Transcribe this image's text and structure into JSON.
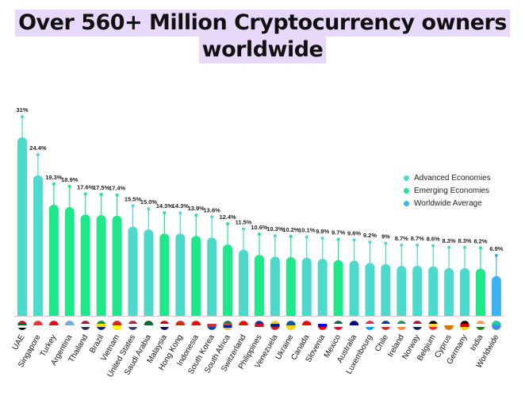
{
  "title": {
    "line1": "Over 560+ Million Cryptocurrency owners",
    "line2": "worldwide"
  },
  "colors": {
    "advanced": "#4dd9cc",
    "emerging": "#1de88a",
    "worldwide": "#3eb2f2"
  },
  "chart_data": {
    "type": "bar",
    "title": "Over 560+ Million Cryptocurrency owners worldwide",
    "xlabel": "",
    "ylabel": "",
    "ylim": [
      0,
      31
    ],
    "grid": false,
    "legend_position": "right",
    "legend": [
      {
        "name": "Advanced Economies",
        "group": "advanced"
      },
      {
        "name": "Emerging Economies",
        "group": "emerging"
      },
      {
        "name": "Worldwide Average",
        "group": "worldwide"
      }
    ],
    "categories": [
      "UAE",
      "Singapore",
      "Turkey",
      "Argentina",
      "Thailand",
      "Brazil",
      "Vietnam",
      "United States",
      "Saudi Arabia",
      "Malaysia",
      "Hong Kong",
      "Indonesia",
      "South Korea",
      "South Africa",
      "Switzerland",
      "Philippines",
      "Venezuela",
      "Ukraine",
      "Canada",
      "Slovenia",
      "Mexico",
      "Australia",
      "Luxembourg",
      "Chile",
      "Ireland",
      "Norway",
      "Belgium",
      "Cyprus",
      "Germany",
      "India",
      "Worldwide"
    ],
    "values": [
      31,
      24.4,
      19.3,
      18.9,
      17.6,
      17.5,
      17.4,
      15.5,
      15.0,
      14.3,
      14.3,
      13.9,
      13.6,
      12.4,
      11.5,
      10.6,
      10.3,
      10.2,
      10.1,
      9.9,
      9.7,
      9.6,
      9.2,
      9,
      8.7,
      8.7,
      8.6,
      8.3,
      8.3,
      8.2,
      6.9
    ],
    "labels": [
      "31%",
      "24.4%",
      "19.3%",
      "18.9%",
      "17.6%",
      "17.5%",
      "17.4%",
      "15.5%",
      "15.0%",
      "14.3%",
      "14.3%",
      "13.9%",
      "13.6%",
      "12.4%",
      "11.5%",
      "10.6%",
      "10.3%",
      "10.2%",
      "10.1%",
      "9.9%",
      "9.7%",
      "9.6%",
      "9.2%",
      "9%",
      "8.7%",
      "8.7%",
      "8.6%",
      "8.3%",
      "8.3%",
      "8.2%",
      "6.9%"
    ],
    "groups": [
      "advanced",
      "advanced",
      "emerging",
      "emerging",
      "emerging",
      "emerging",
      "emerging",
      "advanced",
      "advanced",
      "emerging",
      "advanced",
      "emerging",
      "advanced",
      "emerging",
      "advanced",
      "emerging",
      "advanced",
      "emerging",
      "advanced",
      "advanced",
      "emerging",
      "advanced",
      "advanced",
      "advanced",
      "advanced",
      "advanced",
      "advanced",
      "advanced",
      "advanced",
      "emerging",
      "worldwide"
    ],
    "flags": [
      {
        "icon": "uae-flag-icon",
        "colors": [
          "#ce1126",
          "#00732f",
          "#ffffff",
          "#000000"
        ]
      },
      {
        "icon": "singapore-flag-icon",
        "colors": [
          "#ef3340",
          "#ffffff"
        ]
      },
      {
        "icon": "turkey-flag-icon",
        "colors": [
          "#e30a17",
          "#ffffff"
        ]
      },
      {
        "icon": "argentina-flag-icon",
        "colors": [
          "#74acdf",
          "#ffffff"
        ]
      },
      {
        "icon": "thailand-flag-icon",
        "colors": [
          "#a51931",
          "#f4f5f8",
          "#2d2a4a"
        ]
      },
      {
        "icon": "brazil-flag-icon",
        "colors": [
          "#009c3b",
          "#ffdf00",
          "#002776"
        ]
      },
      {
        "icon": "vietnam-flag-icon",
        "colors": [
          "#da251d",
          "#ffff00"
        ]
      },
      {
        "icon": "us-flag-icon",
        "colors": [
          "#b22234",
          "#ffffff",
          "#3c3b6e"
        ]
      },
      {
        "icon": "saudi-arabia-flag-icon",
        "colors": [
          "#006c35",
          "#ffffff"
        ]
      },
      {
        "icon": "malaysia-flag-icon",
        "colors": [
          "#cc0001",
          "#ffffff",
          "#010066"
        ]
      },
      {
        "icon": "hong-kong-flag-icon",
        "colors": [
          "#de2910",
          "#ffffff"
        ]
      },
      {
        "icon": "indonesia-flag-icon",
        "colors": [
          "#ff0000",
          "#ffffff"
        ]
      },
      {
        "icon": "south-korea-flag-icon",
        "colors": [
          "#ffffff",
          "#cd2e3a",
          "#0047a0"
        ]
      },
      {
        "icon": "south-africa-flag-icon",
        "colors": [
          "#007a4d",
          "#de3831",
          "#002395",
          "#ffb612"
        ]
      },
      {
        "icon": "switzerland-flag-icon",
        "colors": [
          "#ff0000",
          "#ffffff"
        ]
      },
      {
        "icon": "philippines-flag-icon",
        "colors": [
          "#0038a8",
          "#ce1126",
          "#ffffff"
        ]
      },
      {
        "icon": "venezuela-flag-icon",
        "colors": [
          "#ffcc00",
          "#00247d",
          "#cf142b"
        ]
      },
      {
        "icon": "ukraine-flag-icon",
        "colors": [
          "#0057b7",
          "#ffd700"
        ]
      },
      {
        "icon": "canada-flag-icon",
        "colors": [
          "#ff0000",
          "#ffffff"
        ]
      },
      {
        "icon": "slovenia-flag-icon",
        "colors": [
          "#ffffff",
          "#0000ff",
          "#ff0000"
        ]
      },
      {
        "icon": "mexico-flag-icon",
        "colors": [
          "#006847",
          "#ffffff",
          "#ce1126"
        ]
      },
      {
        "icon": "australia-flag-icon",
        "colors": [
          "#00008b",
          "#ffffff"
        ]
      },
      {
        "icon": "luxembourg-flag-icon",
        "colors": [
          "#ed2939",
          "#ffffff",
          "#00a1de"
        ]
      },
      {
        "icon": "chile-flag-icon",
        "colors": [
          "#0039a6",
          "#ffffff",
          "#d52b1e"
        ]
      },
      {
        "icon": "ireland-flag-icon",
        "colors": [
          "#169b62",
          "#ffffff",
          "#ff883e"
        ]
      },
      {
        "icon": "norway-flag-icon",
        "colors": [
          "#ba0c2f",
          "#ffffff",
          "#00205b"
        ]
      },
      {
        "icon": "belgium-flag-icon",
        "colors": [
          "#000000",
          "#fae042",
          "#ed2939"
        ]
      },
      {
        "icon": "cyprus-flag-icon",
        "colors": [
          "#ffffff",
          "#d57800"
        ]
      },
      {
        "icon": "germany-flag-icon",
        "colors": [
          "#000000",
          "#dd0000",
          "#ffce00"
        ]
      },
      {
        "icon": "india-flag-icon",
        "colors": [
          "#ff9933",
          "#ffffff",
          "#138808"
        ]
      },
      {
        "icon": "globe-icon",
        "colors": [
          "#1ec7a8",
          "#3a8ee6"
        ]
      }
    ]
  }
}
